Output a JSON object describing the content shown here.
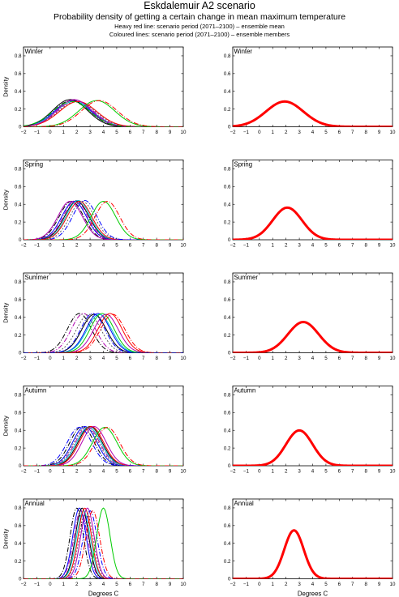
{
  "header": {
    "title": "Eskdalemuir A2 scenario",
    "subtitle": "Probability density of getting a certain change in mean maximum temperature",
    "note1": "Heavy red line: scenario period (2071–2100) – ensemble mean",
    "note2": "Coloured lines: scenario period (2071–2100) – ensemble members"
  },
  "chart_data": {
    "type": "line",
    "xlabel": "Degrees C",
    "ylabel": "Density",
    "xlim": [
      -2,
      10
    ],
    "ylim": [
      0,
      0.9
    ],
    "xticks": [
      -2,
      -1,
      0,
      1,
      2,
      3,
      4,
      5,
      6,
      7,
      8,
      9,
      10
    ],
    "yticks": [
      0,
      0.2,
      0.4,
      0.6,
      0.8
    ],
    "grid": false,
    "colors": {
      "ensemble_mean": "#ff0000",
      "members": [
        "#000000",
        "#0000ff",
        "#00cc00",
        "#ff0000",
        "#00c8c8",
        "#b000b0",
        "#606060"
      ]
    },
    "seasons": [
      {
        "name": "Winter",
        "ensemble_mean": {
          "mean": 1.9,
          "sd": 1.4
        },
        "members": [
          {
            "mean": 1.6,
            "sd": 1.35,
            "color": "#000000",
            "dash": "6,2,1,2"
          },
          {
            "mean": 1.7,
            "sd": 1.35,
            "color": "#0000ff",
            "dash": ""
          },
          {
            "mean": 1.8,
            "sd": 1.4,
            "color": "#00c8c8",
            "dash": ""
          },
          {
            "mean": 1.9,
            "sd": 1.35,
            "color": "#b000b0",
            "dash": "6,2,1,2"
          },
          {
            "mean": 2.0,
            "sd": 1.4,
            "color": "#606060",
            "dash": "2,2"
          },
          {
            "mean": 1.5,
            "sd": 1.3,
            "color": "#000000",
            "dash": ""
          },
          {
            "mean": 2.1,
            "sd": 1.4,
            "color": "#ff0000",
            "dash": ""
          },
          {
            "mean": 1.8,
            "sd": 1.3,
            "color": "#b000b0",
            "dash": ""
          },
          {
            "mean": 1.6,
            "sd": 1.4,
            "color": "#00cc00",
            "dash": "6,2,1,2"
          },
          {
            "mean": 3.5,
            "sd": 1.35,
            "color": "#00cc00",
            "dash": ""
          },
          {
            "mean": 3.7,
            "sd": 1.35,
            "color": "#ff0000",
            "dash": "6,2,1,2"
          }
        ]
      },
      {
        "name": "Spring",
        "ensemble_mean": {
          "mean": 2.1,
          "sd": 1.1
        },
        "members": [
          {
            "mean": 1.6,
            "sd": 0.92,
            "color": "#000000",
            "dash": "6,2,1,2"
          },
          {
            "mean": 1.8,
            "sd": 0.92,
            "color": "#0000ff",
            "dash": ""
          },
          {
            "mean": 1.9,
            "sd": 0.9,
            "color": "#b000b0",
            "dash": "6,2,1,2"
          },
          {
            "mean": 2.0,
            "sd": 0.92,
            "color": "#000000",
            "dash": ""
          },
          {
            "mean": 2.1,
            "sd": 0.9,
            "color": "#00c8c8",
            "dash": ""
          },
          {
            "mean": 2.2,
            "sd": 0.92,
            "color": "#ff0000",
            "dash": ""
          },
          {
            "mean": 2.4,
            "sd": 0.92,
            "color": "#606060",
            "dash": "2,2"
          },
          {
            "mean": 1.5,
            "sd": 0.92,
            "color": "#b000b0",
            "dash": ""
          },
          {
            "mean": 2.6,
            "sd": 0.9,
            "color": "#0000ff",
            "dash": "6,2,1,2"
          },
          {
            "mean": 4.0,
            "sd": 0.92,
            "color": "#00cc00",
            "dash": ""
          },
          {
            "mean": 4.3,
            "sd": 0.92,
            "color": "#ff0000",
            "dash": "6,2,1,2"
          }
        ]
      },
      {
        "name": "Summer",
        "ensemble_mean": {
          "mean": 3.3,
          "sd": 1.15
        },
        "members": [
          {
            "mean": 2.2,
            "sd": 0.9,
            "color": "#000000",
            "dash": "6,2,1,2"
          },
          {
            "mean": 2.5,
            "sd": 0.9,
            "color": "#b000b0",
            "dash": "6,2,1,2"
          },
          {
            "mean": 2.9,
            "sd": 0.92,
            "color": "#606060",
            "dash": "2,2"
          },
          {
            "mean": 3.3,
            "sd": 0.92,
            "color": "#000000",
            "dash": ""
          },
          {
            "mean": 3.6,
            "sd": 0.9,
            "color": "#0000ff",
            "dash": ""
          },
          {
            "mean": 3.7,
            "sd": 0.92,
            "color": "#00c8c8",
            "dash": ""
          },
          {
            "mean": 3.9,
            "sd": 0.9,
            "color": "#00cc00",
            "dash": ""
          },
          {
            "mean": 4.2,
            "sd": 0.92,
            "color": "#b000b0",
            "dash": ""
          },
          {
            "mean": 4.5,
            "sd": 0.9,
            "color": "#ff0000",
            "dash": ""
          },
          {
            "mean": 4.7,
            "sd": 0.92,
            "color": "#ff0000",
            "dash": "6,2,1,2"
          },
          {
            "mean": 3.2,
            "sd": 0.9,
            "color": "#0000ff",
            "dash": "6,2,1,2"
          }
        ]
      },
      {
        "name": "Autumn",
        "ensemble_mean": {
          "mean": 3.0,
          "sd": 1.0
        },
        "members": [
          {
            "mean": 2.4,
            "sd": 0.9,
            "color": "#000000",
            "dash": "6,2,1,2"
          },
          {
            "mean": 2.6,
            "sd": 0.9,
            "color": "#0000ff",
            "dash": ""
          },
          {
            "mean": 2.8,
            "sd": 0.92,
            "color": "#b000b0",
            "dash": "6,2,1,2"
          },
          {
            "mean": 3.0,
            "sd": 0.9,
            "color": "#000000",
            "dash": ""
          },
          {
            "mean": 2.9,
            "sd": 0.92,
            "color": "#00c8c8",
            "dash": ""
          },
          {
            "mean": 3.1,
            "sd": 0.9,
            "color": "#ff0000",
            "dash": ""
          },
          {
            "mean": 2.7,
            "sd": 0.92,
            "color": "#606060",
            "dash": "2,2"
          },
          {
            "mean": 3.3,
            "sd": 0.9,
            "color": "#b000b0",
            "dash": ""
          },
          {
            "mean": 2.2,
            "sd": 0.92,
            "color": "#0000ff",
            "dash": "6,2,1,2"
          },
          {
            "mean": 4.1,
            "sd": 0.92,
            "color": "#00cc00",
            "dash": ""
          },
          {
            "mean": 4.3,
            "sd": 0.92,
            "color": "#ff0000",
            "dash": "6,2,1,2"
          }
        ]
      },
      {
        "name": "Annual",
        "ensemble_mean": {
          "mean": 2.6,
          "sd": 0.73
        },
        "members": [
          {
            "mean": 2.0,
            "sd": 0.5,
            "color": "#000000",
            "dash": "6,2,1,2"
          },
          {
            "mean": 2.2,
            "sd": 0.5,
            "color": "#0000ff",
            "dash": ""
          },
          {
            "mean": 2.3,
            "sd": 0.52,
            "color": "#b000b0",
            "dash": "6,2,1,2"
          },
          {
            "mean": 2.4,
            "sd": 0.5,
            "color": "#000000",
            "dash": ""
          },
          {
            "mean": 2.5,
            "sd": 0.52,
            "color": "#00c8c8",
            "dash": ""
          },
          {
            "mean": 2.6,
            "sd": 0.5,
            "color": "#ff0000",
            "dash": ""
          },
          {
            "mean": 2.7,
            "sd": 0.52,
            "color": "#606060",
            "dash": "2,2"
          },
          {
            "mean": 2.8,
            "sd": 0.5,
            "color": "#b000b0",
            "dash": ""
          },
          {
            "mean": 3.0,
            "sd": 0.52,
            "color": "#0000ff",
            "dash": "6,2,1,2"
          },
          {
            "mean": 4.0,
            "sd": 0.5,
            "color": "#00cc00",
            "dash": ""
          },
          {
            "mean": 3.2,
            "sd": 0.52,
            "color": "#ff0000",
            "dash": "6,2,1,2"
          }
        ]
      }
    ]
  }
}
